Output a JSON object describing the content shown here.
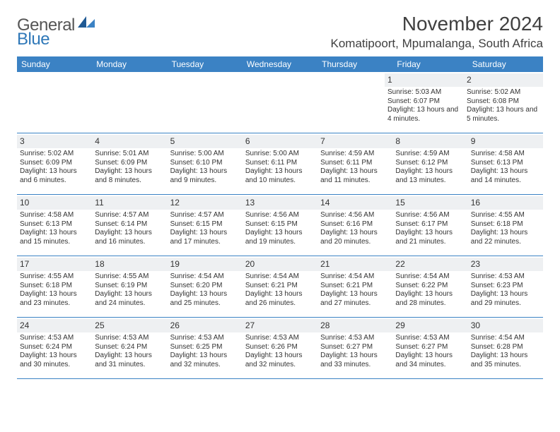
{
  "brand": {
    "part1": "General",
    "part2": "Blue"
  },
  "title": "November 2024",
  "location": "Komatipoort, Mpumalanga, South Africa",
  "header_bg": "#3b82c4",
  "weekdays": [
    "Sunday",
    "Monday",
    "Tuesday",
    "Wednesday",
    "Thursday",
    "Friday",
    "Saturday"
  ],
  "weeks": [
    [
      null,
      null,
      null,
      null,
      null,
      {
        "n": "1",
        "sr": "5:03 AM",
        "ss": "6:07 PM",
        "dl": "13 hours and 4 minutes."
      },
      {
        "n": "2",
        "sr": "5:02 AM",
        "ss": "6:08 PM",
        "dl": "13 hours and 5 minutes."
      }
    ],
    [
      {
        "n": "3",
        "sr": "5:02 AM",
        "ss": "6:09 PM",
        "dl": "13 hours and 6 minutes."
      },
      {
        "n": "4",
        "sr": "5:01 AM",
        "ss": "6:09 PM",
        "dl": "13 hours and 8 minutes."
      },
      {
        "n": "5",
        "sr": "5:00 AM",
        "ss": "6:10 PM",
        "dl": "13 hours and 9 minutes."
      },
      {
        "n": "6",
        "sr": "5:00 AM",
        "ss": "6:11 PM",
        "dl": "13 hours and 10 minutes."
      },
      {
        "n": "7",
        "sr": "4:59 AM",
        "ss": "6:11 PM",
        "dl": "13 hours and 11 minutes."
      },
      {
        "n": "8",
        "sr": "4:59 AM",
        "ss": "6:12 PM",
        "dl": "13 hours and 13 minutes."
      },
      {
        "n": "9",
        "sr": "4:58 AM",
        "ss": "6:13 PM",
        "dl": "13 hours and 14 minutes."
      }
    ],
    [
      {
        "n": "10",
        "sr": "4:58 AM",
        "ss": "6:13 PM",
        "dl": "13 hours and 15 minutes."
      },
      {
        "n": "11",
        "sr": "4:57 AM",
        "ss": "6:14 PM",
        "dl": "13 hours and 16 minutes."
      },
      {
        "n": "12",
        "sr": "4:57 AM",
        "ss": "6:15 PM",
        "dl": "13 hours and 17 minutes."
      },
      {
        "n": "13",
        "sr": "4:56 AM",
        "ss": "6:15 PM",
        "dl": "13 hours and 19 minutes."
      },
      {
        "n": "14",
        "sr": "4:56 AM",
        "ss": "6:16 PM",
        "dl": "13 hours and 20 minutes."
      },
      {
        "n": "15",
        "sr": "4:56 AM",
        "ss": "6:17 PM",
        "dl": "13 hours and 21 minutes."
      },
      {
        "n": "16",
        "sr": "4:55 AM",
        "ss": "6:18 PM",
        "dl": "13 hours and 22 minutes."
      }
    ],
    [
      {
        "n": "17",
        "sr": "4:55 AM",
        "ss": "6:18 PM",
        "dl": "13 hours and 23 minutes."
      },
      {
        "n": "18",
        "sr": "4:55 AM",
        "ss": "6:19 PM",
        "dl": "13 hours and 24 minutes."
      },
      {
        "n": "19",
        "sr": "4:54 AM",
        "ss": "6:20 PM",
        "dl": "13 hours and 25 minutes."
      },
      {
        "n": "20",
        "sr": "4:54 AM",
        "ss": "6:21 PM",
        "dl": "13 hours and 26 minutes."
      },
      {
        "n": "21",
        "sr": "4:54 AM",
        "ss": "6:21 PM",
        "dl": "13 hours and 27 minutes."
      },
      {
        "n": "22",
        "sr": "4:54 AM",
        "ss": "6:22 PM",
        "dl": "13 hours and 28 minutes."
      },
      {
        "n": "23",
        "sr": "4:53 AM",
        "ss": "6:23 PM",
        "dl": "13 hours and 29 minutes."
      }
    ],
    [
      {
        "n": "24",
        "sr": "4:53 AM",
        "ss": "6:24 PM",
        "dl": "13 hours and 30 minutes."
      },
      {
        "n": "25",
        "sr": "4:53 AM",
        "ss": "6:24 PM",
        "dl": "13 hours and 31 minutes."
      },
      {
        "n": "26",
        "sr": "4:53 AM",
        "ss": "6:25 PM",
        "dl": "13 hours and 32 minutes."
      },
      {
        "n": "27",
        "sr": "4:53 AM",
        "ss": "6:26 PM",
        "dl": "13 hours and 32 minutes."
      },
      {
        "n": "28",
        "sr": "4:53 AM",
        "ss": "6:27 PM",
        "dl": "13 hours and 33 minutes."
      },
      {
        "n": "29",
        "sr": "4:53 AM",
        "ss": "6:27 PM",
        "dl": "13 hours and 34 minutes."
      },
      {
        "n": "30",
        "sr": "4:54 AM",
        "ss": "6:28 PM",
        "dl": "13 hours and 35 minutes."
      }
    ]
  ],
  "labels": {
    "sunrise_prefix": "Sunrise: ",
    "sunset_prefix": "Sunset: ",
    "daylight_prefix": "Daylight: "
  }
}
